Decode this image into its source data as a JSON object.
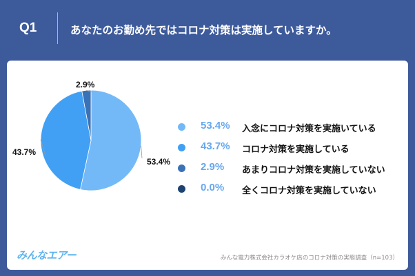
{
  "header": {
    "question": "Q1",
    "title": "あなたのお勤め先ではコロナ対策は実施していますか。"
  },
  "colors": {
    "background": "#3d5a9b",
    "panel": "#ffffff",
    "accent": "#66a7ef"
  },
  "chart_data": {
    "type": "pie",
    "slices": [
      {
        "label": "入念にコロナ対策を実施いている",
        "value": 53.4,
        "display": "53.4%",
        "color": "#74b9f7"
      },
      {
        "label": "コロナ対策を実施している",
        "value": 43.7,
        "display": "43.7%",
        "color": "#41a0f4"
      },
      {
        "label": "あまりコロナ対策を実施していない",
        "value": 2.9,
        "display": "2.9%",
        "color": "#3a72b8"
      },
      {
        "label": "全くコロナ対策を実施していない",
        "value": 0.0,
        "display": "0.0%",
        "color": "#1e4371"
      }
    ],
    "legend_position": "right"
  },
  "footer": {
    "logo": "みんなエアー",
    "source": "みんな電力株式会社カラオケ店のコロナ対策の実態調査（n=103）"
  }
}
